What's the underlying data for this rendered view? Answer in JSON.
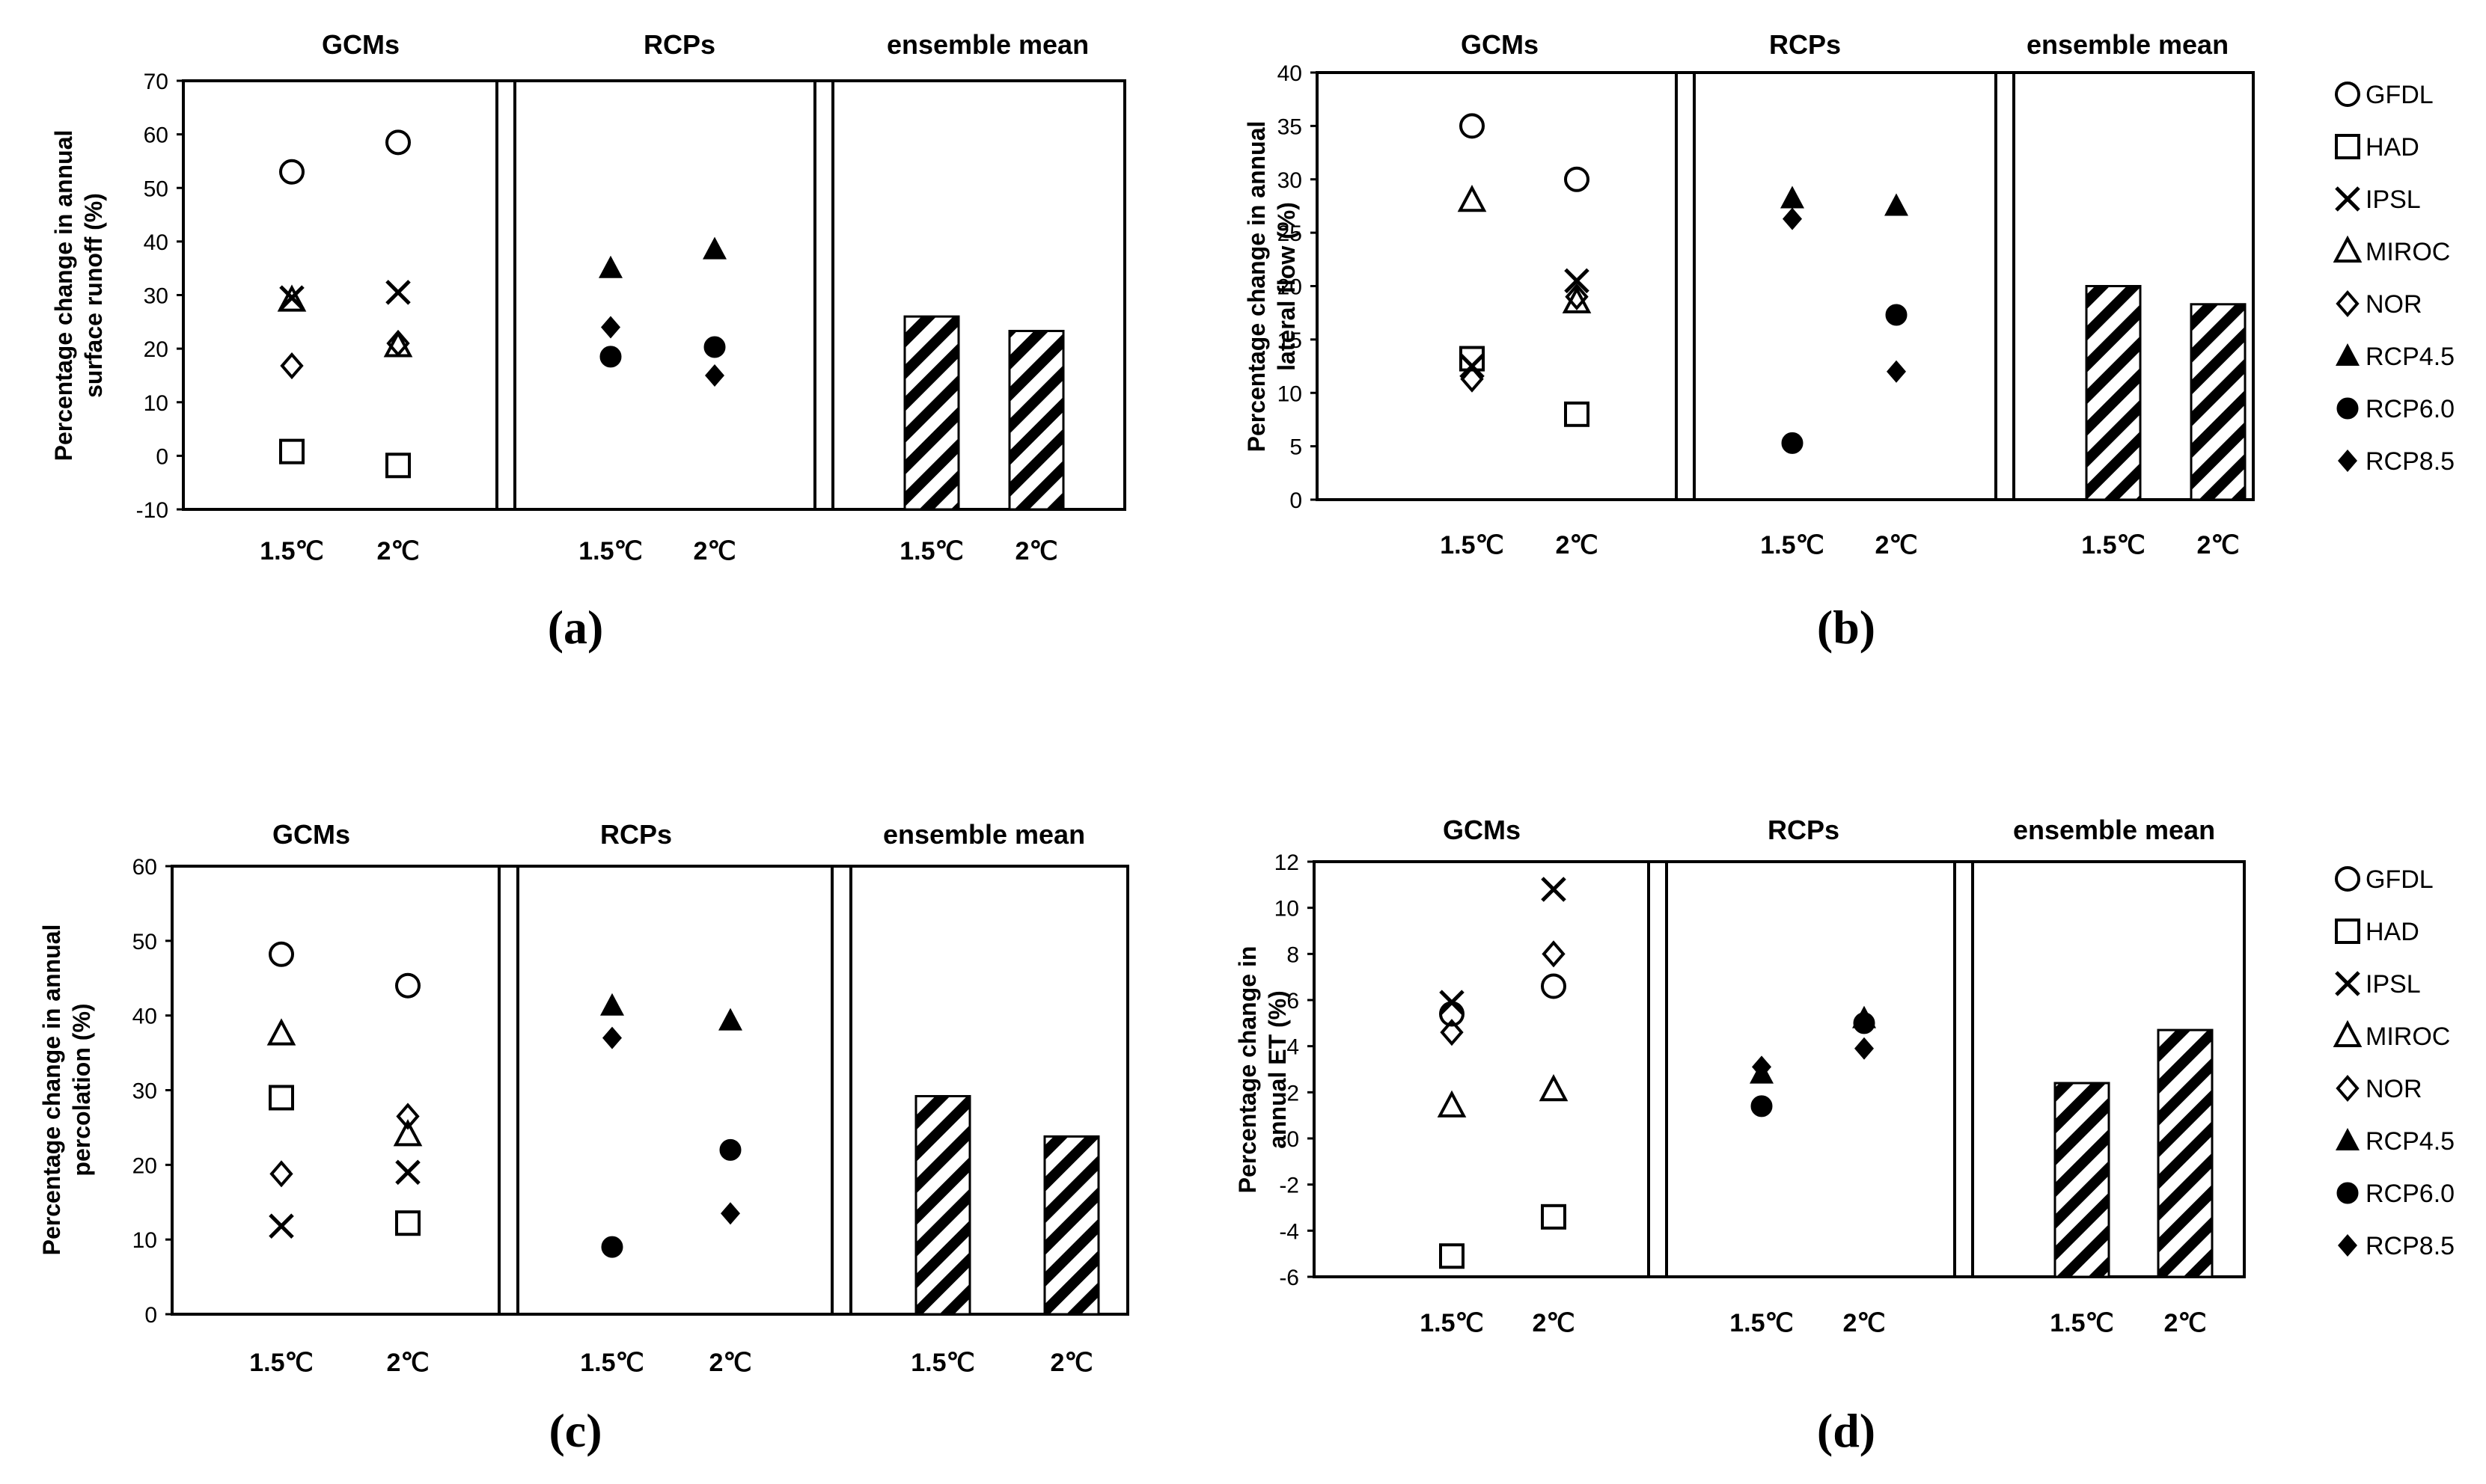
{
  "chart_data": [
    {
      "type": "scatter",
      "panel_label": "(a)",
      "ylabel": [
        "Percentage change in annual",
        "surface runoff (%)"
      ],
      "ylim": [
        -10,
        70
      ],
      "yticks": [
        -10,
        0,
        10,
        20,
        30,
        40,
        50,
        60,
        70
      ],
      "sections": [
        "GCMs",
        "RCPs",
        "ensemble mean"
      ],
      "categories": [
        "1.5℃",
        "2℃"
      ],
      "series": [
        {
          "name": "GFDL",
          "section": "GCMs",
          "values": [
            53,
            58.5
          ]
        },
        {
          "name": "HAD",
          "section": "GCMs",
          "values": [
            0.8,
            -1.8
          ]
        },
        {
          "name": "IPSL",
          "section": "GCMs",
          "values": [
            29.5,
            30.5
          ]
        },
        {
          "name": "MIROC",
          "section": "GCMs",
          "values": [
            29,
            20.5
          ]
        },
        {
          "name": "NOR",
          "section": "GCMs",
          "values": [
            16.8,
            21
          ]
        },
        {
          "name": "RCP4.5",
          "section": "RCPs",
          "values": [
            35,
            38.5
          ]
        },
        {
          "name": "RCP6.0",
          "section": "RCPs",
          "values": [
            18.5,
            20.3
          ]
        },
        {
          "name": "RCP8.5",
          "section": "RCPs",
          "values": [
            24,
            15
          ]
        }
      ],
      "ensemble_mean": [
        26,
        23.3
      ]
    },
    {
      "type": "scatter",
      "panel_label": "(b)",
      "ylabel": [
        "Percentage change in annual",
        "lateral flow (%)"
      ],
      "ylim": [
        0,
        40
      ],
      "yticks": [
        0,
        5,
        10,
        15,
        20,
        25,
        30,
        35,
        40
      ],
      "sections": [
        "GCMs",
        "RCPs",
        "ensemble mean"
      ],
      "categories": [
        "1.5℃",
        "2℃"
      ],
      "series": [
        {
          "name": "GFDL",
          "section": "GCMs",
          "values": [
            35,
            30
          ]
        },
        {
          "name": "HAD",
          "section": "GCMs",
          "values": [
            13.2,
            8
          ]
        },
        {
          "name": "IPSL",
          "section": "GCMs",
          "values": [
            12.5,
            20.5
          ]
        },
        {
          "name": "MIROC",
          "section": "GCMs",
          "values": [
            28,
            18.5
          ]
        },
        {
          "name": "NOR",
          "section": "GCMs",
          "values": [
            11.3,
            19
          ]
        },
        {
          "name": "RCP4.5",
          "section": "RCPs",
          "values": [
            28.2,
            27.5
          ]
        },
        {
          "name": "RCP6.0",
          "section": "RCPs",
          "values": [
            5.3,
            17.3
          ]
        },
        {
          "name": "RCP8.5",
          "section": "RCPs",
          "values": [
            26.3,
            12
          ]
        }
      ],
      "ensemble_mean": [
        20,
        18.3
      ]
    },
    {
      "type": "scatter",
      "panel_label": "(c)",
      "ylabel": [
        "Percentage change in annual",
        "percolation (%)"
      ],
      "ylim": [
        0,
        60
      ],
      "yticks": [
        0,
        10,
        20,
        30,
        40,
        50,
        60
      ],
      "sections": [
        "GCMs",
        "RCPs",
        "ensemble mean"
      ],
      "categories": [
        "1.5℃",
        "2℃"
      ],
      "series": [
        {
          "name": "GFDL",
          "section": "GCMs",
          "values": [
            48.2,
            44
          ]
        },
        {
          "name": "HAD",
          "section": "GCMs",
          "values": [
            29,
            12.2
          ]
        },
        {
          "name": "IPSL",
          "section": "GCMs",
          "values": [
            11.8,
            19
          ]
        },
        {
          "name": "MIROC",
          "section": "GCMs",
          "values": [
            37.5,
            24
          ]
        },
        {
          "name": "NOR",
          "section": "GCMs",
          "values": [
            18.8,
            26.5
          ]
        },
        {
          "name": "RCP4.5",
          "section": "RCPs",
          "values": [
            41.3,
            39.3
          ]
        },
        {
          "name": "RCP6.0",
          "section": "RCPs",
          "values": [
            9,
            22
          ]
        },
        {
          "name": "RCP8.5",
          "section": "RCPs",
          "values": [
            37,
            13.5
          ]
        }
      ],
      "ensemble_mean": [
        29.2,
        23.8
      ]
    },
    {
      "type": "scatter",
      "panel_label": "(d)",
      "ylabel": [
        "Percentage change in",
        "annual    ET (%)"
      ],
      "ylim": [
        -6,
        12
      ],
      "yticks": [
        -6,
        -4,
        -2,
        0,
        2,
        4,
        6,
        8,
        10,
        12
      ],
      "sections": [
        "GCMs",
        "RCPs",
        "ensemble mean"
      ],
      "categories": [
        "1.5℃",
        "2℃"
      ],
      "series": [
        {
          "name": "GFDL",
          "section": "GCMs",
          "values": [
            5.4,
            6.6
          ]
        },
        {
          "name": "HAD",
          "section": "GCMs",
          "values": [
            -5.1,
            -3.4
          ]
        },
        {
          "name": "IPSL",
          "section": "GCMs",
          "values": [
            5.9,
            10.8
          ]
        },
        {
          "name": "MIROC",
          "section": "GCMs",
          "values": [
            1.4,
            2.1
          ]
        },
        {
          "name": "NOR",
          "section": "GCMs",
          "values": [
            4.6,
            8
          ]
        },
        {
          "name": "RCP4.5",
          "section": "RCPs",
          "values": [
            2.8,
            5.2
          ]
        },
        {
          "name": "RCP6.0",
          "section": "RCPs",
          "values": [
            1.4,
            5
          ]
        },
        {
          "name": "RCP8.5",
          "section": "RCPs",
          "values": [
            3.1,
            3.9
          ]
        }
      ],
      "ensemble_mean": [
        2.4,
        4.7
      ]
    }
  ],
  "legend": {
    "items": [
      {
        "name": "GFDL",
        "marker": "circle-open"
      },
      {
        "name": "HAD",
        "marker": "square-open"
      },
      {
        "name": "IPSL",
        "marker": "x"
      },
      {
        "name": "MIROC",
        "marker": "triangle-open"
      },
      {
        "name": "NOR",
        "marker": "diamond-open"
      },
      {
        "name": "RCP4.5",
        "marker": "triangle-filled"
      },
      {
        "name": "RCP6.0",
        "marker": "circle-filled"
      },
      {
        "name": "RCP8.5",
        "marker": "diamond-filled"
      }
    ]
  },
  "colors": {
    "ink": "#000000",
    "background": "#ffffff"
  }
}
